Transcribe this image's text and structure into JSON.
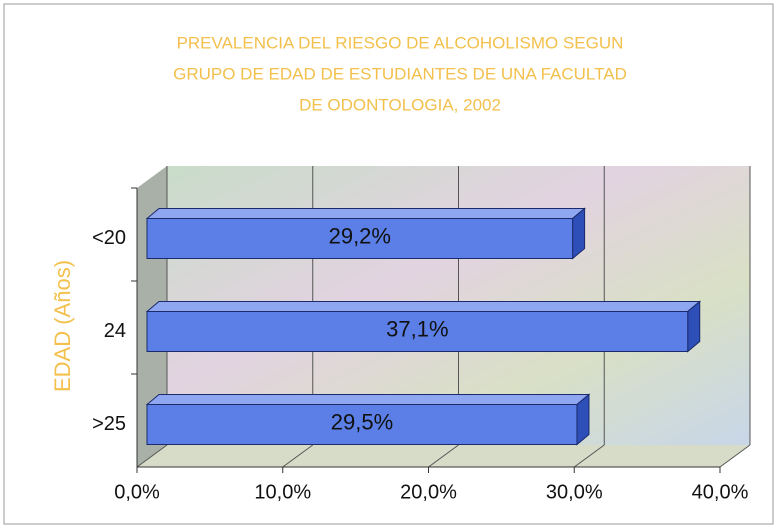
{
  "chart_data": {
    "type": "bar3d",
    "title": [
      "PREVALENCIA DEL RIESGO DE ALCOHOLISMO SEGUN",
      "GRUPO DE EDAD DE ESTUDIANTES DE UNA FACULTAD",
      "DE ODONTOLOGIA, 2002"
    ],
    "y_axis_label": "EDAD (Años)",
    "categories": [
      "<20",
      "24",
      ">25"
    ],
    "values": [
      29.2,
      37.1,
      29.5
    ],
    "value_labels": [
      "29,2%",
      "37,1%",
      "29,5%"
    ],
    "color": "#5b7fe6",
    "xlim": [
      0,
      40
    ],
    "xticks": [
      {
        "value": 0,
        "label": "0,0%"
      },
      {
        "value": 10,
        "label": "10,0%"
      },
      {
        "value": 20,
        "label": "20,0%"
      },
      {
        "value": 30,
        "label": "30,0%"
      },
      {
        "value": 40,
        "label": "40,0%"
      }
    ],
    "grid": true
  }
}
